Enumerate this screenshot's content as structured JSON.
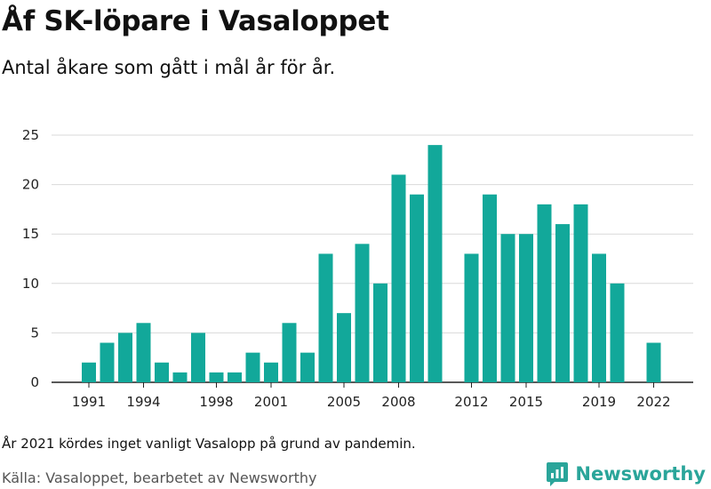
{
  "header": {
    "title": "Åf SK-löpare i Vasaloppet",
    "subtitle": "Antal åkare som gått i mål år för år."
  },
  "footer": {
    "note": "År 2021 kördes inget vanligt Vasalopp på grund av pandemin.",
    "source": "Källa: Vasaloppet, bearbetet av Newsworthy",
    "brand": "Newsworthy",
    "brand_color": "#2aa59a",
    "brand_icon": "newsworthy-logo-icon"
  },
  "chart_data": {
    "type": "bar",
    "title": "Åf SK-löpare i Vasaloppet",
    "subtitle": "Antal åkare som gått i mål år för år.",
    "xlabel": "",
    "ylabel": "",
    "categories": [
      1991,
      1992,
      1993,
      1994,
      1995,
      1996,
      1997,
      1998,
      1999,
      2000,
      2001,
      2002,
      2003,
      2004,
      2005,
      2006,
      2007,
      2008,
      2009,
      2010,
      2011,
      2012,
      2013,
      2014,
      2015,
      2016,
      2017,
      2018,
      2019,
      2020,
      2021,
      2022
    ],
    "values": [
      2,
      4,
      5,
      6,
      2,
      1,
      5,
      1,
      1,
      3,
      2,
      6,
      3,
      13,
      7,
      14,
      10,
      21,
      19,
      24,
      null,
      13,
      19,
      15,
      15,
      18,
      16,
      18,
      13,
      10,
      null,
      4
    ],
    "xticks": [
      1991,
      1994,
      1998,
      2001,
      2005,
      2008,
      2012,
      2015,
      2019,
      2022
    ],
    "yticks": [
      0,
      5,
      10,
      15,
      20,
      25
    ],
    "ylim": [
      0,
      25
    ],
    "grid": "horizontal",
    "bar_color": "#12a89a"
  }
}
